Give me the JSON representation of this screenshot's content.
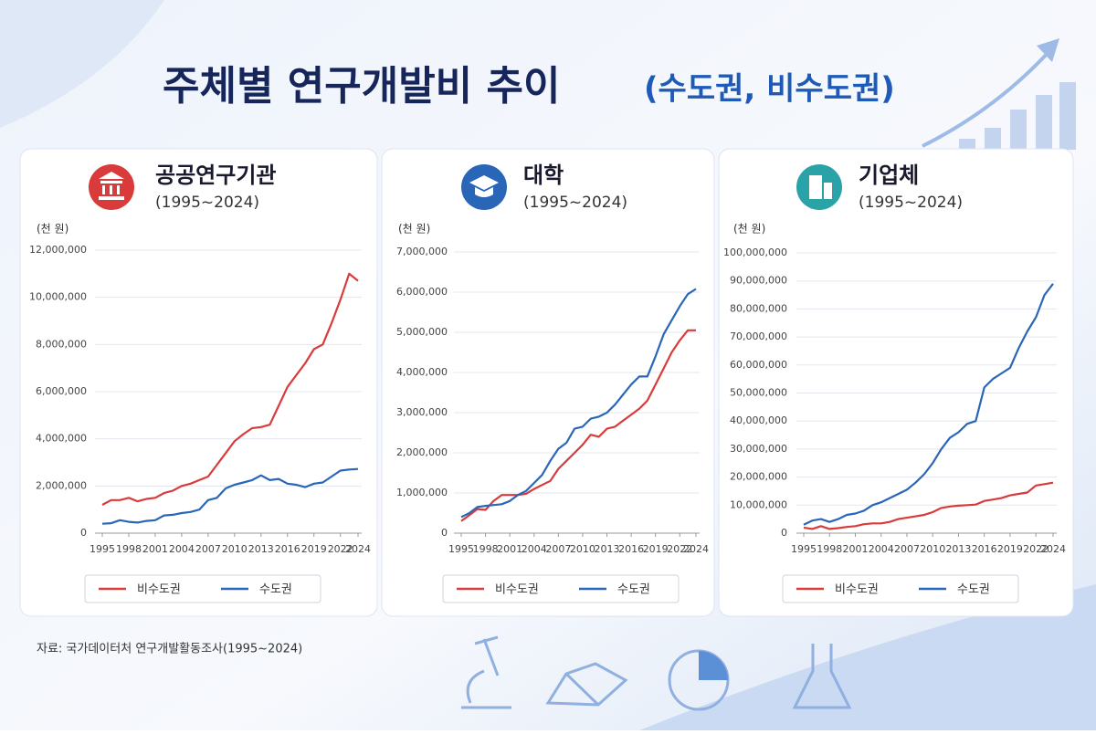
{
  "title": "주체별 연구개발비 추이",
  "subtitle": "(수도권, 비수도권)",
  "source": "자료: 국가데이터처 연구개발활동조사(1995~2024)",
  "chart_data": [
    {
      "type": "line",
      "title": "공공연구기관",
      "subtitle": "(1995~2024)",
      "y_label": "(천 원)",
      "x": [
        1995,
        1996,
        1997,
        1998,
        1999,
        2000,
        2001,
        2002,
        2003,
        2004,
        2005,
        2006,
        2007,
        2008,
        2009,
        2010,
        2011,
        2012,
        2013,
        2014,
        2015,
        2016,
        2017,
        2018,
        2019,
        2020,
        2021,
        2022,
        2023,
        2024
      ],
      "xlim": [
        1995,
        2024
      ],
      "xticks": [
        1995,
        1998,
        2001,
        2004,
        2007,
        2010,
        2013,
        2016,
        2019,
        2022,
        2024
      ],
      "ylim": [
        0,
        12000000
      ],
      "yticks": [
        0,
        {
          "value": 2000000,
          "label": "2,000,000"
        },
        {
          "value": 4000000,
          "label": "4,000,000"
        },
        {
          "value": 6000000,
          "label": "6,000,000"
        },
        {
          "value": 8000000,
          "label": "8,000,000"
        },
        {
          "value": 10000000,
          "label": "10,000,000"
        },
        {
          "value": 12000000,
          "label": "12,000,000"
        }
      ],
      "grid": true,
      "series": [
        {
          "name": "비수도권",
          "color": "#d93a3a",
          "values": [
            1200000,
            1400000,
            1400000,
            1500000,
            1350000,
            1450000,
            1500000,
            1700000,
            1800000,
            2000000,
            2100000,
            2250000,
            2400000,
            2900000,
            3400000,
            3900000,
            4200000,
            4450000,
            4500000,
            4600000,
            5400000,
            6200000,
            6700000,
            7200000,
            7800000,
            8000000,
            8900000,
            9900000,
            11000000,
            10700000
          ]
        },
        {
          "name": "수도권",
          "color": "#2a66b8",
          "values": [
            400000,
            420000,
            550000,
            480000,
            450000,
            520000,
            550000,
            750000,
            780000,
            850000,
            900000,
            1000000,
            1400000,
            1500000,
            1900000,
            2050000,
            2150000,
            2250000,
            2450000,
            2250000,
            2300000,
            2100000,
            2050000,
            1950000,
            2100000,
            2150000,
            2400000,
            2650000,
            2700000,
            2720000
          ]
        }
      ]
    },
    {
      "type": "line",
      "title": "대학",
      "subtitle": "(1995~2024)",
      "y_label": "(천 원)",
      "x": [
        1995,
        1996,
        1997,
        1998,
        1999,
        2000,
        2001,
        2002,
        2003,
        2004,
        2005,
        2006,
        2007,
        2008,
        2009,
        2010,
        2011,
        2012,
        2013,
        2014,
        2015,
        2016,
        2017,
        2018,
        2019,
        2020,
        2021,
        2022,
        2023,
        2024
      ],
      "xlim": [
        1995,
        2024
      ],
      "xticks": [
        1995,
        1998,
        2001,
        2004,
        2007,
        2010,
        2013,
        2016,
        2019,
        2022,
        2024
      ],
      "ylim": [
        0,
        7000000
      ],
      "yticks": [
        0,
        {
          "value": 1000000,
          "label": "1,000,000"
        },
        {
          "value": 2000000,
          "label": "2,000,000"
        },
        {
          "value": 3000000,
          "label": "3,000,000"
        },
        {
          "value": 4000000,
          "label": "4,000,000"
        },
        {
          "value": 5000000,
          "label": "5,000,000"
        },
        {
          "value": 6000000,
          "label": "6,000,000"
        },
        {
          "value": 7000000,
          "label": "7,000,000"
        }
      ],
      "grid": true,
      "series": [
        {
          "name": "비수도권",
          "color": "#d93a3a",
          "values": [
            300000,
            450000,
            600000,
            580000,
            800000,
            950000,
            950000,
            950000,
            980000,
            1100000,
            1200000,
            1300000,
            1600000,
            1800000,
            2000000,
            2200000,
            2450000,
            2400000,
            2600000,
            2650000,
            2800000,
            2950000,
            3100000,
            3300000,
            3700000,
            4100000,
            4500000,
            4800000,
            5050000,
            5050000
          ]
        },
        {
          "name": "수도권",
          "color": "#2a66b8",
          "values": [
            400000,
            500000,
            650000,
            680000,
            700000,
            720000,
            800000,
            950000,
            1050000,
            1250000,
            1450000,
            1800000,
            2100000,
            2250000,
            2600000,
            2650000,
            2850000,
            2900000,
            3000000,
            3200000,
            3450000,
            3700000,
            3900000,
            3900000,
            4400000,
            4950000,
            5300000,
            5650000,
            5950000,
            6080000
          ]
        }
      ]
    },
    {
      "type": "line",
      "title": "기업체",
      "subtitle": "(1995~2024)",
      "y_label": "(천 원)",
      "x": [
        1995,
        1996,
        1997,
        1998,
        1999,
        2000,
        2001,
        2002,
        2003,
        2004,
        2005,
        2006,
        2007,
        2008,
        2009,
        2010,
        2011,
        2012,
        2013,
        2014,
        2015,
        2016,
        2017,
        2018,
        2019,
        2020,
        2021,
        2022,
        2023,
        2024
      ],
      "xlim": [
        1995,
        2024
      ],
      "xticks": [
        1995,
        1998,
        2001,
        2004,
        2007,
        2010,
        2013,
        2016,
        2019,
        2022,
        2024
      ],
      "ylim": [
        0,
        100000000
      ],
      "yticks": [
        0,
        {
          "value": 10000000,
          "label": "10,000,000"
        },
        {
          "value": 20000000,
          "label": "20,000,000"
        },
        {
          "value": 30000000,
          "label": "30,000,000"
        },
        {
          "value": 40000000,
          "label": "40,000,000"
        },
        {
          "value": 50000000,
          "label": "50,000,000"
        },
        {
          "value": 60000000,
          "label": "60,000,000"
        },
        {
          "value": 70000000,
          "label": "70,000,000"
        },
        {
          "value": 80000000,
          "label": "80,000,000"
        },
        {
          "value": 90000000,
          "label": "90,000,000"
        },
        {
          "value": 100000000,
          "label": "100,000,000"
        }
      ],
      "grid": true,
      "series": [
        {
          "name": "비수도권",
          "color": "#d93a3a",
          "values": [
            2000000,
            1500000,
            2500000,
            1500000,
            1800000,
            2200000,
            2500000,
            3200000,
            3500000,
            3500000,
            4000000,
            5000000,
            5500000,
            6000000,
            6500000,
            7500000,
            9000000,
            9500000,
            9800000,
            10000000,
            10200000,
            11500000,
            12000000,
            12500000,
            13500000,
            14000000,
            14500000,
            17000000,
            17500000,
            18000000
          ]
        },
        {
          "name": "수도권",
          "color": "#2a66b8",
          "values": [
            3000000,
            4500000,
            5000000,
            4000000,
            5000000,
            6500000,
            7000000,
            8000000,
            10000000,
            11000000,
            12500000,
            14000000,
            15500000,
            18000000,
            21000000,
            25000000,
            30000000,
            34000000,
            36000000,
            39000000,
            40000000,
            52000000,
            55000000,
            57000000,
            59000000,
            66000000,
            72000000,
            77000000,
            85000000,
            89000000
          ]
        }
      ]
    }
  ]
}
